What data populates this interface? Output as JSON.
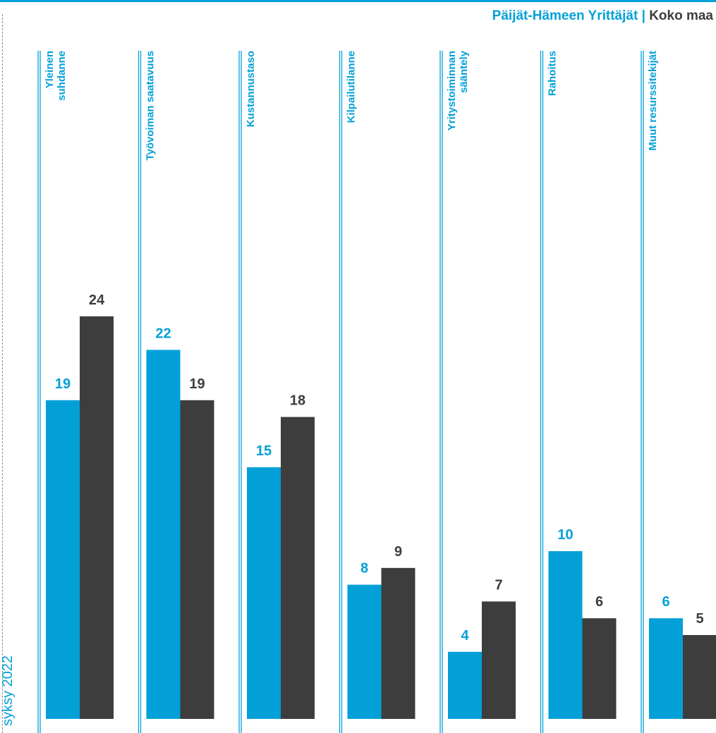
{
  "legend": {
    "series_a": "Päijät-Hämeen Yrittäjät",
    "separator": "|",
    "series_b": "Koko maa"
  },
  "period_label": "syksy 2022",
  "colors": {
    "series_a": "#03a0d8",
    "series_b": "#3d3d3d",
    "divider": "#03a0d8"
  },
  "chart_data": {
    "type": "bar",
    "categories": [
      [
        "Yleinen",
        "suhdanne"
      ],
      [
        "Työvoiman saatavuus"
      ],
      [
        "Kustannustaso"
      ],
      [
        "Kilpailutilanne"
      ],
      [
        "Yritystoiminnan",
        "sääntely"
      ],
      [
        "Rahoitus"
      ],
      [
        "Muut resurssitekijät"
      ]
    ],
    "series": [
      {
        "name": "Päijät-Hämeen Yrittäjät",
        "values": [
          19,
          22,
          15,
          8,
          4,
          10,
          6
        ]
      },
      {
        "name": "Koko maa",
        "values": [
          24,
          19,
          18,
          9,
          7,
          6,
          5
        ]
      }
    ],
    "ylim": [
      0,
      28
    ],
    "grid": false,
    "legend_position": "top-right"
  }
}
